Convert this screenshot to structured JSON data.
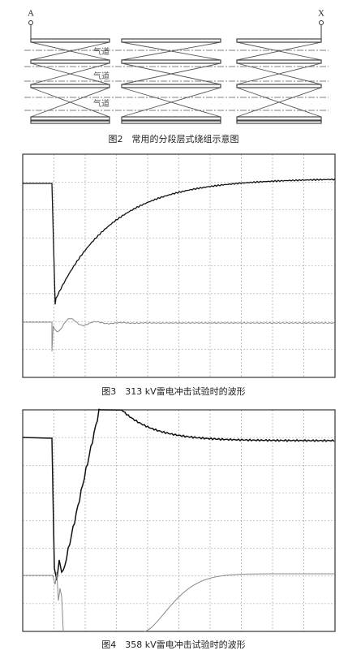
{
  "figure2": {
    "labels": {
      "left": "A",
      "right": "X"
    },
    "air_gaps": [
      "气道",
      "气道",
      "气道"
    ],
    "caption": "图2　常用的分段层式绕组示意图"
  },
  "figure3": {
    "caption": "图3　313 kV雷电冲击试验时的波形"
  },
  "figure4": {
    "caption": "图4　358 kV雷电冲击试验时的波形"
  }
}
